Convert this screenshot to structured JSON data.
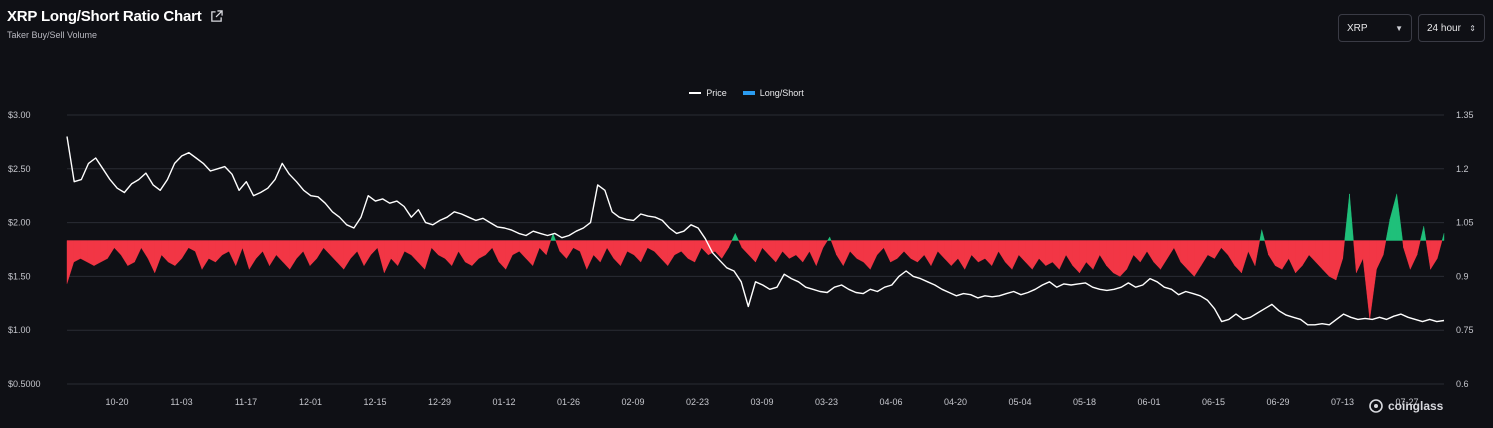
{
  "header": {
    "title": "XRP Long/Short Ratio Chart",
    "subtitle": "Taker Buy/Sell Volume"
  },
  "controls": {
    "symbol": "XRP",
    "interval": "24 hour"
  },
  "legend": {
    "price": "Price",
    "ratio": "Long/Short"
  },
  "brand": "coinglass",
  "colors": {
    "background": "#0f1015",
    "price_line": "#ffffff",
    "long_area": "#1fc07a",
    "short_area": "#f23645",
    "ratio_legend": "#2b9cf0",
    "grid": "#2a2c34"
  },
  "chart_data": {
    "type": "area",
    "title": "XRP Long/Short Ratio Chart",
    "x_tick_labels": [
      "10-20",
      "11-03",
      "11-17",
      "12-01",
      "12-15",
      "12-29",
      "01-12",
      "01-26",
      "02-09",
      "02-23",
      "03-09",
      "03-23",
      "04-06",
      "04-20",
      "05-04",
      "05-18",
      "06-01",
      "06-15",
      "06-29",
      "07-13",
      "07-27"
    ],
    "y_left": {
      "ticks": [
        "$3.00",
        "$2.50",
        "$2.00",
        "$1.50",
        "$1.00",
        "$0.5000"
      ],
      "range": [
        0.5,
        3.0
      ]
    },
    "y_right": {
      "ticks": [
        "1.35",
        "1.2",
        "1.05",
        "0.9",
        "0.75",
        "0.6"
      ],
      "range": [
        0.6,
        1.35
      ],
      "baseline": 1.0
    },
    "series": [
      {
        "name": "Price",
        "axis": "left",
        "values": [
          2.8,
          2.38,
          2.4,
          2.55,
          2.6,
          2.5,
          2.4,
          2.32,
          2.28,
          2.36,
          2.4,
          2.46,
          2.35,
          2.3,
          2.4,
          2.55,
          2.62,
          2.65,
          2.6,
          2.55,
          2.48,
          2.5,
          2.52,
          2.45,
          2.3,
          2.38,
          2.25,
          2.28,
          2.32,
          2.4,
          2.55,
          2.45,
          2.38,
          2.3,
          2.25,
          2.24,
          2.18,
          2.1,
          2.05,
          1.98,
          1.95,
          2.05,
          2.25,
          2.2,
          2.22,
          2.18,
          2.2,
          2.15,
          2.05,
          2.12,
          2.0,
          1.98,
          2.02,
          2.05,
          2.1,
          2.08,
          2.05,
          2.02,
          2.04,
          2.0,
          1.96,
          1.95,
          1.93,
          1.9,
          1.88,
          1.92,
          1.9,
          1.88,
          1.9,
          1.86,
          1.88,
          1.92,
          1.95,
          2.0,
          2.35,
          2.3,
          2.1,
          2.05,
          2.03,
          2.02,
          2.08,
          2.06,
          2.05,
          2.02,
          1.95,
          1.9,
          1.92,
          1.98,
          1.95,
          1.85,
          1.72,
          1.65,
          1.58,
          1.55,
          1.45,
          1.22,
          1.45,
          1.42,
          1.38,
          1.4,
          1.52,
          1.48,
          1.45,
          1.4,
          1.38,
          1.36,
          1.35,
          1.4,
          1.42,
          1.38,
          1.35,
          1.34,
          1.38,
          1.36,
          1.4,
          1.42,
          1.5,
          1.55,
          1.5,
          1.48,
          1.45,
          1.42,
          1.38,
          1.35,
          1.32,
          1.34,
          1.33,
          1.3,
          1.32,
          1.31,
          1.32,
          1.34,
          1.36,
          1.33,
          1.35,
          1.38,
          1.42,
          1.45,
          1.4,
          1.43,
          1.42,
          1.43,
          1.44,
          1.4,
          1.38,
          1.37,
          1.38,
          1.4,
          1.44,
          1.4,
          1.42,
          1.48,
          1.45,
          1.4,
          1.38,
          1.33,
          1.36,
          1.34,
          1.32,
          1.28,
          1.2,
          1.08,
          1.1,
          1.15,
          1.1,
          1.12,
          1.16,
          1.2,
          1.24,
          1.18,
          1.14,
          1.12,
          1.1,
          1.05,
          1.05,
          1.06,
          1.05,
          1.1,
          1.15,
          1.12,
          1.1,
          1.11,
          1.1,
          1.12,
          1.1,
          1.13,
          1.15,
          1.12,
          1.1,
          1.08,
          1.1,
          1.08,
          1.09
        ]
      },
      {
        "name": "Long/Short",
        "axis": "right",
        "values": [
          0.88,
          0.94,
          0.95,
          0.94,
          0.93,
          0.94,
          0.95,
          0.98,
          0.96,
          0.93,
          0.94,
          0.98,
          0.95,
          0.91,
          0.96,
          0.94,
          0.93,
          0.95,
          0.98,
          0.97,
          0.92,
          0.95,
          0.94,
          0.96,
          0.97,
          0.93,
          0.98,
          0.92,
          0.95,
          0.97,
          0.93,
          0.96,
          0.94,
          0.92,
          0.95,
          0.97,
          0.93,
          0.95,
          0.98,
          0.96,
          0.94,
          0.92,
          0.95,
          0.97,
          0.93,
          0.96,
          0.98,
          0.91,
          0.95,
          0.93,
          0.97,
          0.96,
          0.94,
          0.92,
          0.98,
          0.96,
          0.95,
          0.93,
          0.97,
          0.94,
          0.93,
          0.95,
          0.96,
          0.98,
          0.94,
          0.92,
          0.96,
          0.97,
          0.95,
          0.93,
          0.98,
          0.96,
          1.02,
          0.97,
          0.95,
          0.98,
          0.97,
          0.92,
          0.96,
          0.94,
          0.98,
          0.95,
          0.93,
          0.97,
          0.96,
          0.94,
          0.98,
          0.97,
          0.95,
          0.93,
          0.96,
          0.97,
          0.95,
          0.94,
          0.98,
          0.96,
          0.97,
          0.95,
          0.98,
          1.02,
          0.98,
          0.96,
          0.94,
          0.98,
          0.96,
          0.94,
          0.97,
          0.95,
          0.96,
          0.94,
          0.97,
          0.93,
          0.98,
          1.01,
          0.96,
          0.93,
          0.97,
          0.95,
          0.94,
          0.92,
          0.96,
          0.98,
          0.94,
          0.95,
          0.97,
          0.95,
          0.94,
          0.96,
          0.93,
          0.97,
          0.95,
          0.93,
          0.95,
          0.92,
          0.96,
          0.94,
          0.95,
          0.93,
          0.97,
          0.94,
          0.92,
          0.96,
          0.94,
          0.92,
          0.95,
          0.93,
          0.94,
          0.92,
          0.96,
          0.93,
          0.91,
          0.94,
          0.92,
          0.96,
          0.93,
          0.91,
          0.9,
          0.92,
          0.96,
          0.94,
          0.97,
          0.94,
          0.92,
          0.95,
          0.98,
          0.94,
          0.92,
          0.9,
          0.93,
          0.96,
          0.95,
          0.98,
          0.96,
          0.93,
          0.91,
          0.97,
          0.93,
          1.03,
          0.96,
          0.93,
          0.92,
          0.95,
          0.91,
          0.93,
          0.96,
          0.94,
          0.92,
          0.9,
          0.89,
          0.95,
          1.13,
          0.91,
          0.95,
          0.78,
          0.92,
          0.96,
          1.06,
          1.13,
          0.98,
          0.92,
          0.96,
          1.04,
          0.92,
          0.95,
          1.02
        ]
      }
    ],
    "grid": true,
    "legend_position": "top-center"
  }
}
